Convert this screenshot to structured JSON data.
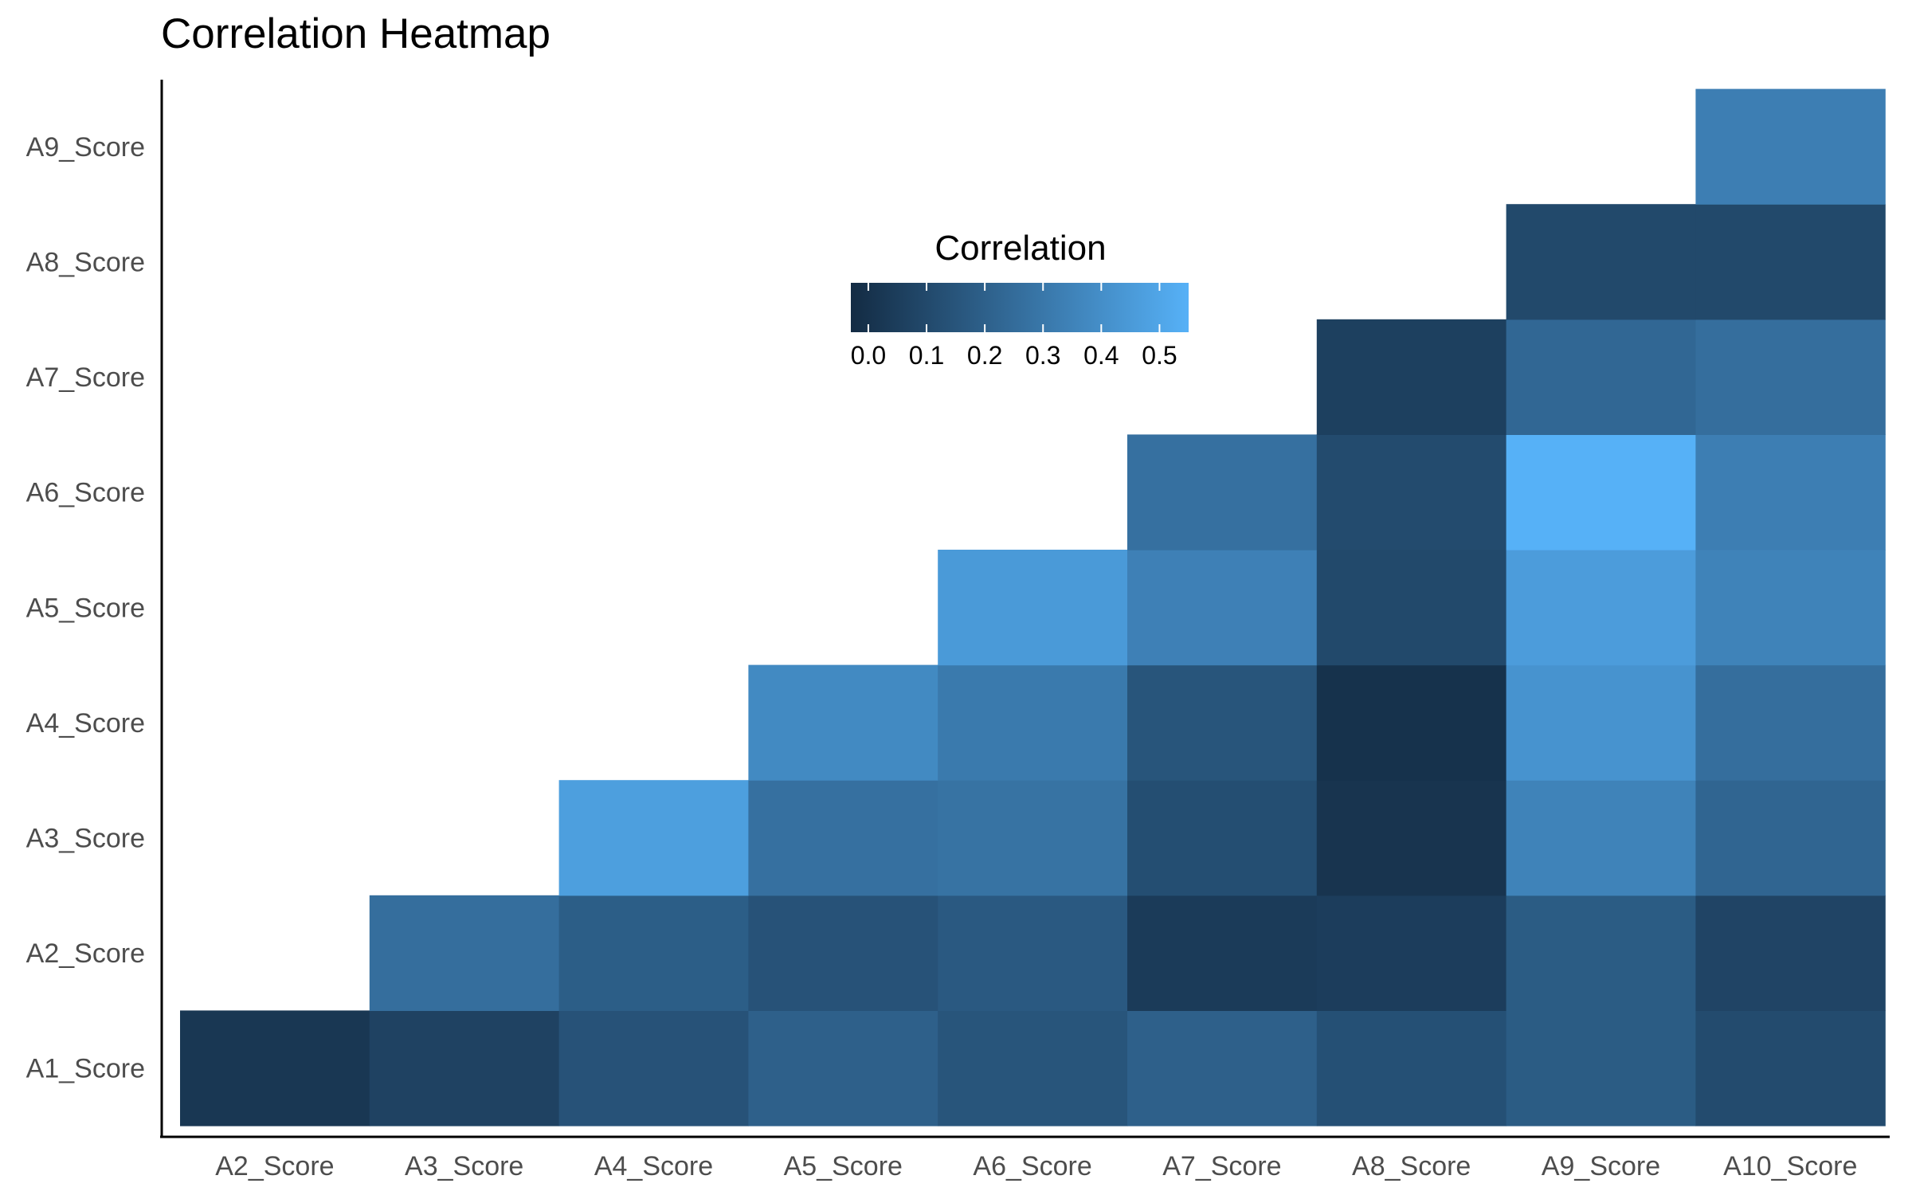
{
  "chart_data": {
    "type": "heatmap",
    "title": "Correlation Heatmap",
    "x_categories": [
      "A2_Score",
      "A3_Score",
      "A4_Score",
      "A5_Score",
      "A6_Score",
      "A7_Score",
      "A8_Score",
      "A9_Score",
      "A10_Score"
    ],
    "y_categories": [
      "A1_Score",
      "A2_Score",
      "A3_Score",
      "A4_Score",
      "A5_Score",
      "A6_Score",
      "A7_Score",
      "A8_Score",
      "A9_Score"
    ],
    "values": [
      [
        0.02,
        0.07,
        0.14,
        0.2,
        0.15,
        0.2,
        0.13,
        0.18,
        0.11
      ],
      [
        null,
        0.26,
        0.19,
        0.14,
        0.17,
        0.04,
        0.05,
        0.18,
        0.08
      ],
      [
        null,
        null,
        0.47,
        0.27,
        0.28,
        0.12,
        0.01,
        0.35,
        0.22
      ],
      [
        null,
        null,
        null,
        0.38,
        0.31,
        0.15,
        0.0,
        0.42,
        0.26
      ],
      [
        null,
        null,
        null,
        null,
        0.45,
        0.34,
        0.1,
        0.46,
        0.35
      ],
      [
        null,
        null,
        null,
        null,
        null,
        0.27,
        0.11,
        0.55,
        0.33
      ],
      [
        null,
        null,
        null,
        null,
        null,
        null,
        0.06,
        0.23,
        0.26
      ],
      [
        null,
        null,
        null,
        null,
        null,
        null,
        null,
        0.1,
        0.1
      ],
      [
        null,
        null,
        null,
        null,
        null,
        null,
        null,
        null,
        0.33
      ]
    ],
    "legend": {
      "title": "Correlation",
      "ticks": [
        "0.0",
        "0.1",
        "0.2",
        "0.3",
        "0.4",
        "0.5"
      ],
      "range": [
        -0.03,
        0.55
      ],
      "low_color": "#132B43",
      "high_color": "#56B1F7",
      "placement": "inside-top-center"
    },
    "grid": false
  }
}
